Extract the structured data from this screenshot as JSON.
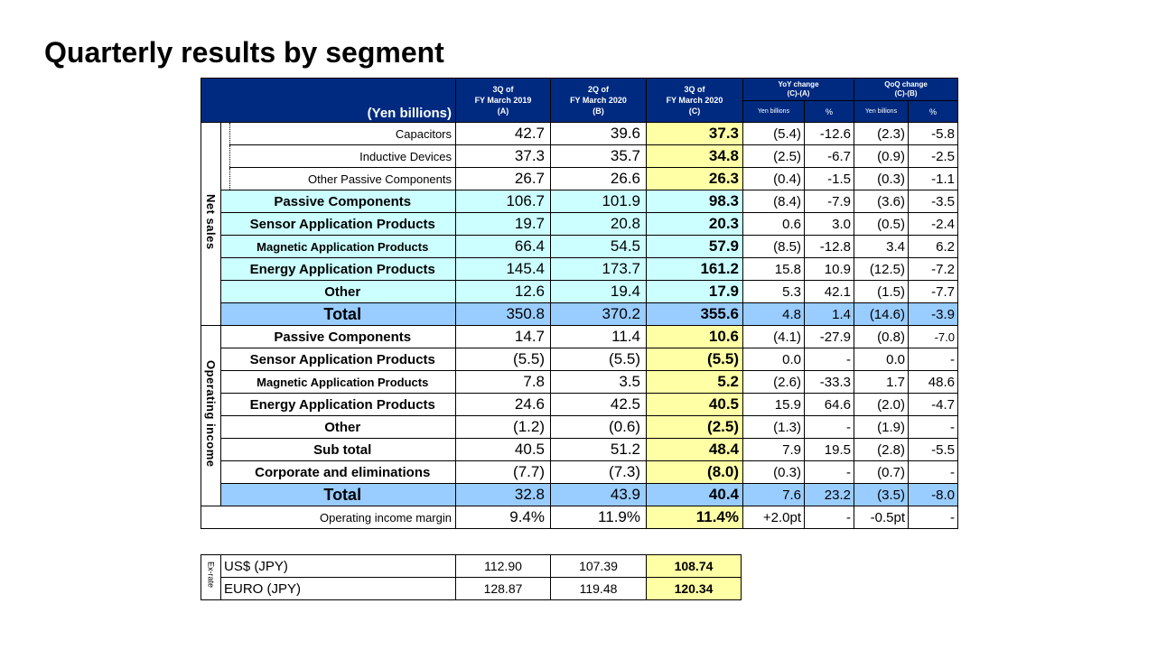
{
  "title": "Quarterly results by segment",
  "header": {
    "unit": "(Yen billions)",
    "col_a": [
      "3Q of",
      "FY March 2019",
      "(A)"
    ],
    "col_b": [
      "2Q of",
      "FY March 2020",
      "(B)"
    ],
    "col_c": [
      "3Q of",
      "FY March 2020",
      "(C)"
    ],
    "yoy": [
      "YoY change",
      "(C)-(A)"
    ],
    "qoq": [
      "QoQ change",
      "(C)-(B)"
    ],
    "yen_billions": "Yen billions",
    "pct": "%"
  },
  "net_sales": {
    "label": "Net sales",
    "rows": [
      {
        "label": "Capacitors",
        "a": "42.7",
        "b": "39.6",
        "c": "37.3",
        "yoy": "(5.4)",
        "yoy_pct": "-12.6",
        "qoq": "(2.3)",
        "qoq_pct": "-5.8"
      },
      {
        "label": "Inductive Devices",
        "a": "37.3",
        "b": "35.7",
        "c": "34.8",
        "yoy": "(2.5)",
        "yoy_pct": "-6.7",
        "qoq": "(0.9)",
        "qoq_pct": "-2.5"
      },
      {
        "label": "Other Passive Components",
        "a": "26.7",
        "b": "26.6",
        "c": "26.3",
        "yoy": "(0.4)",
        "yoy_pct": "-1.5",
        "qoq": "(0.3)",
        "qoq_pct": "-1.1"
      },
      {
        "label": "Passive Components",
        "a": "106.7",
        "b": "101.9",
        "c": "98.3",
        "yoy": "(8.4)",
        "yoy_pct": "-7.9",
        "qoq": "(3.6)",
        "qoq_pct": "-3.5"
      },
      {
        "label": "Sensor Application Products",
        "a": "19.7",
        "b": "20.8",
        "c": "20.3",
        "yoy": "0.6",
        "yoy_pct": "3.0",
        "qoq": "(0.5)",
        "qoq_pct": "-2.4"
      },
      {
        "label": "Magnetic Application Products",
        "a": "66.4",
        "b": "54.5",
        "c": "57.9",
        "yoy": "(8.5)",
        "yoy_pct": "-12.8",
        "qoq": "3.4",
        "qoq_pct": "6.2"
      },
      {
        "label": "Energy Application Products",
        "a": "145.4",
        "b": "173.7",
        "c": "161.2",
        "yoy": "15.8",
        "yoy_pct": "10.9",
        "qoq": "(12.5)",
        "qoq_pct": "-7.2"
      },
      {
        "label": "Other",
        "a": "12.6",
        "b": "19.4",
        "c": "17.9",
        "yoy": "5.3",
        "yoy_pct": "42.1",
        "qoq": "(1.5)",
        "qoq_pct": "-7.7"
      },
      {
        "label": "Total",
        "a": "350.8",
        "b": "370.2",
        "c": "355.6",
        "yoy": "4.8",
        "yoy_pct": "1.4",
        "qoq": "(14.6)",
        "qoq_pct": "-3.9"
      }
    ]
  },
  "operating_income": {
    "label": "Operating income",
    "rows": [
      {
        "label": "Passive Components",
        "a": "14.7",
        "b": "11.4",
        "c": "10.6",
        "yoy": "(4.1)",
        "yoy_pct": "-27.9",
        "qoq": "(0.8)",
        "qoq_pct": "-7.0"
      },
      {
        "label": "Sensor Application Products",
        "a": "(5.5)",
        "b": "(5.5)",
        "c": "(5.5)",
        "yoy": "0.0",
        "yoy_pct": "-",
        "qoq": "0.0",
        "qoq_pct": "-"
      },
      {
        "label": "Magnetic Application Products",
        "a": "7.8",
        "b": "3.5",
        "c": "5.2",
        "yoy": "(2.6)",
        "yoy_pct": "-33.3",
        "qoq": "1.7",
        "qoq_pct": "48.6"
      },
      {
        "label": "Energy Application Products",
        "a": "24.6",
        "b": "42.5",
        "c": "40.5",
        "yoy": "15.9",
        "yoy_pct": "64.6",
        "qoq": "(2.0)",
        "qoq_pct": "-4.7"
      },
      {
        "label": "Other",
        "a": "(1.2)",
        "b": "(0.6)",
        "c": "(2.5)",
        "yoy": "(1.3)",
        "yoy_pct": "-",
        "qoq": "(1.9)",
        "qoq_pct": "-"
      },
      {
        "label": "Sub total",
        "a": "40.5",
        "b": "51.2",
        "c": "48.4",
        "yoy": "7.9",
        "yoy_pct": "19.5",
        "qoq": "(2.8)",
        "qoq_pct": "-5.5"
      },
      {
        "label": "Corporate and eliminations",
        "a": "(7.7)",
        "b": "(7.3)",
        "c": "(8.0)",
        "yoy": "(0.3)",
        "yoy_pct": "-",
        "qoq": "(0.7)",
        "qoq_pct": "-"
      },
      {
        "label": "Total",
        "a": "32.8",
        "b": "43.9",
        "c": "40.4",
        "yoy": "7.6",
        "yoy_pct": "23.2",
        "qoq": "(3.5)",
        "qoq_pct": "-8.0"
      }
    ]
  },
  "margin": {
    "label": "Operating income margin",
    "a": "9.4%",
    "b": "11.9%",
    "c": "11.4%",
    "yoy": "+2.0pt",
    "yoy_pct": "-",
    "qoq": "-0.5pt",
    "qoq_pct": "-"
  },
  "fx": {
    "label": "Ex-rate",
    "rows": [
      {
        "label": "US$ (JPY)",
        "a": "112.90",
        "b": "107.39",
        "c": "108.74"
      },
      {
        "label": "EURO (JPY)",
        "a": "128.87",
        "b": "119.48",
        "c": "120.34"
      }
    ]
  },
  "colors": {
    "header_bg": "#002a80",
    "highlight_yellow": "#ffffa6",
    "light_cyan": "#ccffff",
    "total_blue": "#99ccff"
  }
}
